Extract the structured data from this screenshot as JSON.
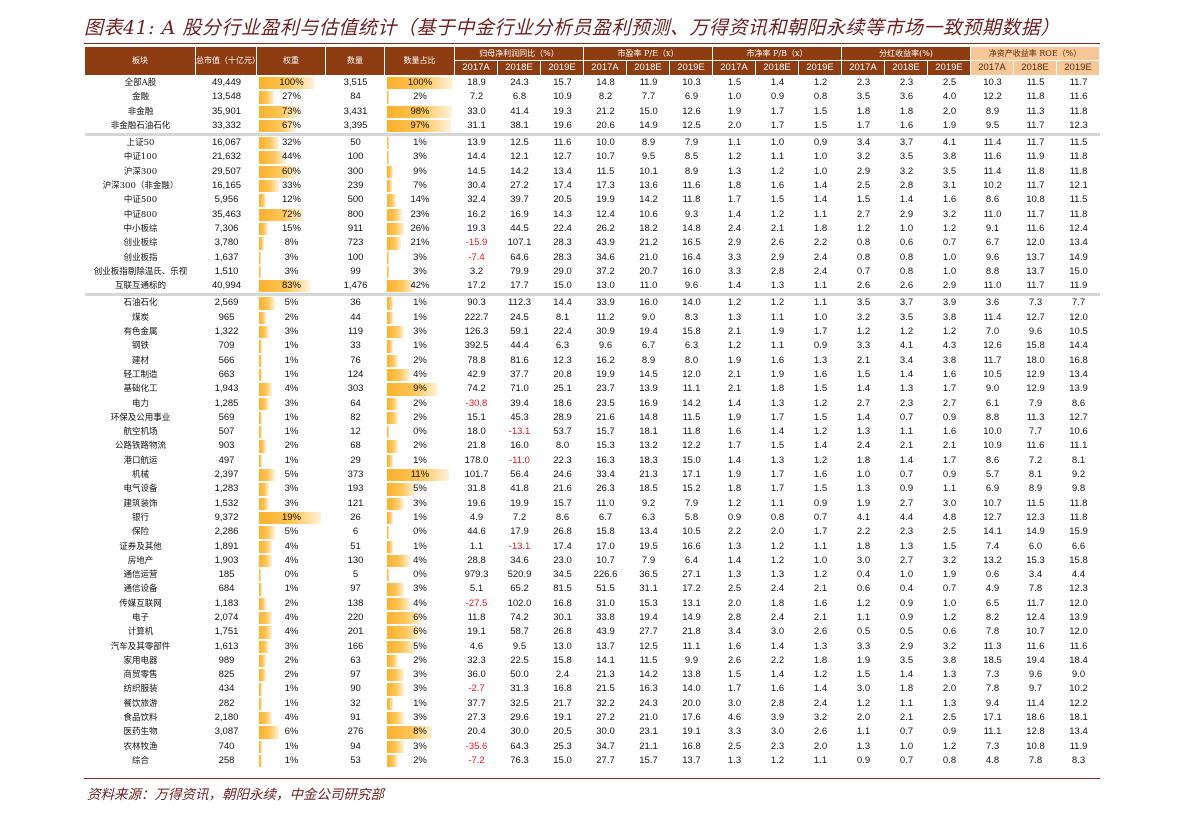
{
  "title": "图表41: A 股分行业盈利与估值统计（基于中金行业分析员盈利预测、万得资讯和朝阳永续等市场一致预期数据）",
  "source": "资料来源：万得资讯，朝阳永续，中金公司研究部",
  "colors": {
    "header_bg": "#8e3d12",
    "roe_header_bg": "#f7c797",
    "bar": "#fbb02a",
    "negative": "#e8141c",
    "title": "#6e1f1f"
  },
  "headers": {
    "sector": "板块",
    "market_cap": "总市值（十亿元）",
    "weight": "权重",
    "count": "数量",
    "count_share": "数量占比",
    "groups": [
      "归母净利润同比（%）",
      "市盈率 P/E（x）",
      "市净率 P/B（x）",
      "分红收益率(%)",
      "净资产收益率 ROE（%）"
    ],
    "years": [
      "2017A",
      "2018E",
      "2019E"
    ]
  },
  "groups": [
    [
      [
        "全部A股",
        "49,449",
        "100%",
        "3,515",
        "100%",
        "18.9",
        "24.3",
        "15.7",
        "14.8",
        "11.9",
        "10.3",
        "1.5",
        "1.4",
        "1.2",
        "2.3",
        "2.3",
        "2.5",
        "10.3",
        "11.5",
        "11.7"
      ],
      [
        "金融",
        "13,548",
        "27%",
        "84",
        "2%",
        "7.2",
        "6.8",
        "10.9",
        "8.2",
        "7.7",
        "6.9",
        "1.0",
        "0.9",
        "0.8",
        "3.5",
        "3.6",
        "4.0",
        "12.2",
        "11.8",
        "11.6"
      ],
      [
        "非金融",
        "35,901",
        "73%",
        "3,431",
        "98%",
        "33.0",
        "41.4",
        "19.3",
        "21.2",
        "15.0",
        "12.6",
        "1.9",
        "1.7",
        "1.5",
        "1.8",
        "1.8",
        "2.0",
        "8.9",
        "11.3",
        "11.8"
      ],
      [
        "非金融石油石化",
        "33,332",
        "67%",
        "3,395",
        "97%",
        "31.1",
        "38.1",
        "19.6",
        "20.6",
        "14.9",
        "12.5",
        "2.0",
        "1.7",
        "1.5",
        "1.7",
        "1.6",
        "1.9",
        "9.5",
        "11.7",
        "12.3"
      ]
    ],
    [
      [
        "上证50",
        "16,067",
        "32%",
        "50",
        "1%",
        "13.9",
        "12.5",
        "11.6",
        "10.0",
        "8.9",
        "7.9",
        "1.1",
        "1.0",
        "0.9",
        "3.4",
        "3.7",
        "4.1",
        "11.4",
        "11.7",
        "11.5"
      ],
      [
        "中证100",
        "21,632",
        "44%",
        "100",
        "3%",
        "14.4",
        "12.1",
        "12.7",
        "10.7",
        "9.5",
        "8.5",
        "1.2",
        "1.1",
        "1.0",
        "3.2",
        "3.5",
        "3.8",
        "11.6",
        "11.9",
        "11.8"
      ],
      [
        "沪深300",
        "29,507",
        "60%",
        "300",
        "9%",
        "14.5",
        "14.2",
        "13.4",
        "11.5",
        "10.1",
        "8.9",
        "1.3",
        "1.2",
        "1.0",
        "2.9",
        "3.2",
        "3.5",
        "11.4",
        "11.8",
        "11.8"
      ],
      [
        "沪深300（非金融）",
        "16,165",
        "33%",
        "239",
        "7%",
        "30.4",
        "27.2",
        "17.4",
        "17.3",
        "13.6",
        "11.6",
        "1.8",
        "1.6",
        "1.4",
        "2.5",
        "2.8",
        "3.1",
        "10.2",
        "11.7",
        "12.1"
      ],
      [
        "中证500",
        "5,956",
        "12%",
        "500",
        "14%",
        "32.4",
        "39.7",
        "20.5",
        "19.9",
        "14.2",
        "11.8",
        "1.7",
        "1.5",
        "1.4",
        "1.5",
        "1.4",
        "1.6",
        "8.6",
        "10.8",
        "11.5"
      ],
      [
        "中证800",
        "35,463",
        "72%",
        "800",
        "23%",
        "16.2",
        "16.9",
        "14.3",
        "12.4",
        "10.6",
        "9.3",
        "1.4",
        "1.2",
        "1.1",
        "2.7",
        "2.9",
        "3.2",
        "11.0",
        "11.7",
        "11.8"
      ],
      [
        "中小板综",
        "7,306",
        "15%",
        "911",
        "26%",
        "19.3",
        "44.5",
        "22.4",
        "26.2",
        "18.2",
        "14.8",
        "2.4",
        "2.1",
        "1.8",
        "1.2",
        "1.0",
        "1.2",
        "9.1",
        "11.6",
        "12.4"
      ],
      [
        "创业板综",
        "3,780",
        "8%",
        "723",
        "21%",
        "-15.9",
        "107.1",
        "28.3",
        "43.9",
        "21.2",
        "16.5",
        "2.9",
        "2.6",
        "2.2",
        "0.8",
        "0.6",
        "0.7",
        "6.7",
        "12.0",
        "13.4"
      ],
      [
        "创业板指",
        "1,637",
        "3%",
        "100",
        "3%",
        "-7.4",
        "64.6",
        "28.3",
        "34.6",
        "21.0",
        "16.4",
        "3.3",
        "2.9",
        "2.4",
        "0.8",
        "0.8",
        "1.0",
        "9.6",
        "13.7",
        "14.9"
      ],
      [
        "创业板指剔除温氏、乐视",
        "1,510",
        "3%",
        "99",
        "3%",
        "3.2",
        "79.9",
        "29.0",
        "37.2",
        "20.7",
        "16.0",
        "3.3",
        "2.8",
        "2.4",
        "0.7",
        "0.8",
        "1.0",
        "8.8",
        "13.7",
        "15.0"
      ],
      [
        "互联互通标的",
        "40,994",
        "83%",
        "1,476",
        "42%",
        "17.2",
        "17.7",
        "15.0",
        "13.0",
        "11.0",
        "9.6",
        "1.4",
        "1.3",
        "1.1",
        "2.6",
        "2.6",
        "2.9",
        "11.0",
        "11.7",
        "11.9"
      ]
    ],
    [
      [
        "石油石化",
        "2,569",
        "5%",
        "36",
        "1%",
        "90.3",
        "112.3",
        "14.4",
        "33.9",
        "16.0",
        "14.0",
        "1.2",
        "1.2",
        "1.1",
        "3.5",
        "3.7",
        "3.9",
        "3.6",
        "7.3",
        "7.7"
      ],
      [
        "煤炭",
        "965",
        "2%",
        "44",
        "1%",
        "222.7",
        "24.5",
        "8.1",
        "11.2",
        "9.0",
        "8.3",
        "1.3",
        "1.1",
        "1.0",
        "3.2",
        "3.5",
        "3.8",
        "11.4",
        "12.7",
        "12.0"
      ],
      [
        "有色金属",
        "1,322",
        "3%",
        "119",
        "3%",
        "126.3",
        "59.1",
        "22.4",
        "30.9",
        "19.4",
        "15.8",
        "2.1",
        "1.9",
        "1.7",
        "1.2",
        "1.2",
        "1.2",
        "7.0",
        "9.6",
        "10.5"
      ],
      [
        "钢铁",
        "709",
        "1%",
        "33",
        "1%",
        "392.5",
        "44.4",
        "6.3",
        "9.6",
        "6.7",
        "6.3",
        "1.2",
        "1.1",
        "0.9",
        "3.3",
        "4.1",
        "4.3",
        "12.6",
        "15.8",
        "14.4"
      ],
      [
        "建材",
        "566",
        "1%",
        "76",
        "2%",
        "78.8",
        "81.6",
        "12.3",
        "16.2",
        "8.9",
        "8.0",
        "1.9",
        "1.6",
        "1.3",
        "2.1",
        "3.4",
        "3.8",
        "11.7",
        "18.0",
        "16.8"
      ],
      [
        "轻工制造",
        "663",
        "1%",
        "124",
        "4%",
        "42.9",
        "37.7",
        "20.8",
        "19.9",
        "14.5",
        "12.0",
        "2.1",
        "1.9",
        "1.6",
        "1.5",
        "1.4",
        "1.6",
        "10.5",
        "12.9",
        "13.4"
      ],
      [
        "基础化工",
        "1,943",
        "4%",
        "303",
        "9%",
        "74.2",
        "71.0",
        "25.1",
        "23.7",
        "13.9",
        "11.1",
        "2.1",
        "1.8",
        "1.5",
        "1.4",
        "1.3",
        "1.7",
        "9.0",
        "12.9",
        "13.9"
      ],
      [
        "电力",
        "1,285",
        "3%",
        "64",
        "2%",
        "-30.8",
        "39.4",
        "18.6",
        "23.5",
        "16.9",
        "14.2",
        "1.4",
        "1.3",
        "1.2",
        "2.7",
        "2.3",
        "2.7",
        "6.1",
        "7.9",
        "8.6"
      ],
      [
        "环保及公用事业",
        "569",
        "1%",
        "82",
        "2%",
        "15.1",
        "45.3",
        "28.9",
        "21.6",
        "14.8",
        "11.5",
        "1.9",
        "1.7",
        "1.5",
        "1.4",
        "0.7",
        "0.9",
        "8.8",
        "11.3",
        "12.7"
      ],
      [
        "航空机场",
        "507",
        "1%",
        "12",
        "0%",
        "18.0",
        "-13.1",
        "53.7",
        "15.7",
        "18.1",
        "11.8",
        "1.6",
        "1.4",
        "1.2",
        "1.3",
        "1.1",
        "1.6",
        "10.0",
        "7.7",
        "10.6"
      ],
      [
        "公路铁路物流",
        "903",
        "2%",
        "68",
        "2%",
        "21.8",
        "16.0",
        "8.0",
        "15.3",
        "13.2",
        "12.2",
        "1.7",
        "1.5",
        "1.4",
        "2.4",
        "2.1",
        "2.1",
        "10.9",
        "11.6",
        "11.1"
      ],
      [
        "港口航运",
        "497",
        "1%",
        "29",
        "1%",
        "178.0",
        "-11.0",
        "22.3",
        "16.3",
        "18.3",
        "15.0",
        "1.4",
        "1.3",
        "1.2",
        "1.8",
        "1.4",
        "1.7",
        "8.6",
        "7.2",
        "8.1"
      ],
      [
        "机械",
        "2,397",
        "5%",
        "373",
        "11%",
        "101.7",
        "56.4",
        "24.6",
        "33.4",
        "21.3",
        "17.1",
        "1.9",
        "1.7",
        "1.6",
        "1.0",
        "0.7",
        "0.9",
        "5.7",
        "8.1",
        "9.2"
      ],
      [
        "电气设备",
        "1,283",
        "3%",
        "193",
        "5%",
        "31.8",
        "41.8",
        "21.6",
        "26.3",
        "18.5",
        "15.2",
        "1.8",
        "1.7",
        "1.5",
        "1.3",
        "0.9",
        "1.1",
        "6.9",
        "8.9",
        "9.8"
      ],
      [
        "建筑装饰",
        "1,532",
        "3%",
        "121",
        "3%",
        "19.6",
        "19.9",
        "15.7",
        "11.0",
        "9.2",
        "7.9",
        "1.2",
        "1.1",
        "0.9",
        "1.9",
        "2.7",
        "3.0",
        "10.7",
        "11.5",
        "11.8"
      ],
      [
        "银行",
        "9,372",
        "19%",
        "26",
        "1%",
        "4.9",
        "7.2",
        "8.6",
        "6.7",
        "6.3",
        "5.8",
        "0.9",
        "0.8",
        "0.7",
        "4.1",
        "4.4",
        "4.8",
        "12.7",
        "12.3",
        "11.8"
      ],
      [
        "保险",
        "2,286",
        "5%",
        "6",
        "0%",
        "44.6",
        "17.9",
        "26.8",
        "15.8",
        "13.4",
        "10.5",
        "2.2",
        "2.0",
        "1.7",
        "2.2",
        "2.3",
        "2.5",
        "14.1",
        "14.9",
        "15.9"
      ],
      [
        "证券及其他",
        "1,891",
        "4%",
        "51",
        "1%",
        "1.1",
        "-13.1",
        "17.4",
        "17.0",
        "19.5",
        "16.6",
        "1.3",
        "1.2",
        "1.1",
        "1.8",
        "1.3",
        "1.5",
        "7.4",
        "6.0",
        "6.6"
      ],
      [
        "房地产",
        "1,903",
        "4%",
        "130",
        "4%",
        "28.8",
        "34.6",
        "23.0",
        "10.7",
        "7.9",
        "6.4",
        "1.4",
        "1.2",
        "1.0",
        "3.0",
        "2.7",
        "3.2",
        "13.2",
        "15.3",
        "15.8"
      ],
      [
        "通信运营",
        "185",
        "0%",
        "5",
        "0%",
        "979.3",
        "520.9",
        "34.5",
        "226.6",
        "36.5",
        "27.1",
        "1.3",
        "1.3",
        "1.2",
        "0.4",
        "1.0",
        "1.9",
        "0.6",
        "3.4",
        "4.4"
      ],
      [
        "通信设备",
        "684",
        "1%",
        "97",
        "3%",
        "5.1",
        "65.2",
        "81.5",
        "51.5",
        "31.1",
        "17.2",
        "2.5",
        "2.4",
        "2.1",
        "0.6",
        "0.4",
        "0.7",
        "4.9",
        "7.8",
        "12.3"
      ],
      [
        "传媒互联网",
        "1,183",
        "2%",
        "138",
        "4%",
        "-27.5",
        "102.0",
        "16.8",
        "31.0",
        "15.3",
        "13.1",
        "2.0",
        "1.8",
        "1.6",
        "1.2",
        "0.9",
        "1.0",
        "6.5",
        "11.7",
        "12.0"
      ],
      [
        "电子",
        "2,074",
        "4%",
        "220",
        "6%",
        "11.8",
        "74.2",
        "30.1",
        "33.8",
        "19.4",
        "14.9",
        "2.8",
        "2.4",
        "2.1",
        "1.1",
        "0.9",
        "1.2",
        "8.2",
        "12.4",
        "13.9"
      ],
      [
        "计算机",
        "1,751",
        "4%",
        "201",
        "6%",
        "19.1",
        "58.7",
        "26.8",
        "43.9",
        "27.7",
        "21.8",
        "3.4",
        "3.0",
        "2.6",
        "0.5",
        "0.5",
        "0.6",
        "7.8",
        "10.7",
        "12.0"
      ],
      [
        "汽车及其零部件",
        "1,613",
        "3%",
        "166",
        "5%",
        "4.6",
        "9.5",
        "13.0",
        "13.7",
        "12.5",
        "11.1",
        "1.6",
        "1.4",
        "1.3",
        "3.3",
        "2.9",
        "3.2",
        "11.3",
        "11.6",
        "11.6"
      ],
      [
        "家用电器",
        "989",
        "2%",
        "63",
        "2%",
        "32.3",
        "22.5",
        "15.8",
        "14.1",
        "11.5",
        "9.9",
        "2.6",
        "2.2",
        "1.8",
        "1.9",
        "3.5",
        "3.8",
        "18.5",
        "19.4",
        "18.4"
      ],
      [
        "商贸零售",
        "825",
        "2%",
        "97",
        "3%",
        "36.0",
        "50.0",
        "2.4",
        "21.3",
        "14.2",
        "13.8",
        "1.5",
        "1.4",
        "1.2",
        "1.5",
        "1.4",
        "1.3",
        "7.3",
        "9.6",
        "9.0"
      ],
      [
        "纺织服装",
        "434",
        "1%",
        "90",
        "3%",
        "-2.7",
        "31.3",
        "16.8",
        "21.5",
        "16.3",
        "14.0",
        "1.7",
        "1.6",
        "1.4",
        "3.0",
        "1.8",
        "2.0",
        "7.8",
        "9.7",
        "10.2"
      ],
      [
        "餐饮旅游",
        "282",
        "1%",
        "32",
        "1%",
        "37.7",
        "32.5",
        "21.7",
        "32.2",
        "24.3",
        "20.0",
        "3.0",
        "2.8",
        "2.4",
        "1.2",
        "1.1",
        "1.3",
        "9.4",
        "11.4",
        "12.2"
      ],
      [
        "食品饮料",
        "2,180",
        "4%",
        "91",
        "3%",
        "27.3",
        "29.6",
        "19.1",
        "27.2",
        "21.0",
        "17.6",
        "4.6",
        "3.9",
        "3.2",
        "2.0",
        "2.1",
        "2.5",
        "17.1",
        "18.6",
        "18.1"
      ],
      [
        "医药生物",
        "3,087",
        "6%",
        "276",
        "8%",
        "20.4",
        "30.0",
        "20.5",
        "30.0",
        "23.1",
        "19.1",
        "3.3",
        "3.0",
        "2.6",
        "1.1",
        "0.7",
        "0.9",
        "11.1",
        "12.8",
        "13.4"
      ],
      [
        "农林牧渔",
        "740",
        "1%",
        "94",
        "3%",
        "-35.6",
        "64.3",
        "25.3",
        "34.7",
        "21.1",
        "16.8",
        "2.5",
        "2.3",
        "2.0",
        "1.3",
        "1.0",
        "1.2",
        "7.3",
        "10.8",
        "11.9"
      ],
      [
        "综合",
        "258",
        "1%",
        "53",
        "2%",
        "-7.2",
        "76.3",
        "15.0",
        "27.7",
        "15.7",
        "13.7",
        "1.3",
        "1.2",
        "1.1",
        "0.9",
        "0.7",
        "0.8",
        "4.8",
        "7.8",
        "8.3"
      ]
    ]
  ]
}
